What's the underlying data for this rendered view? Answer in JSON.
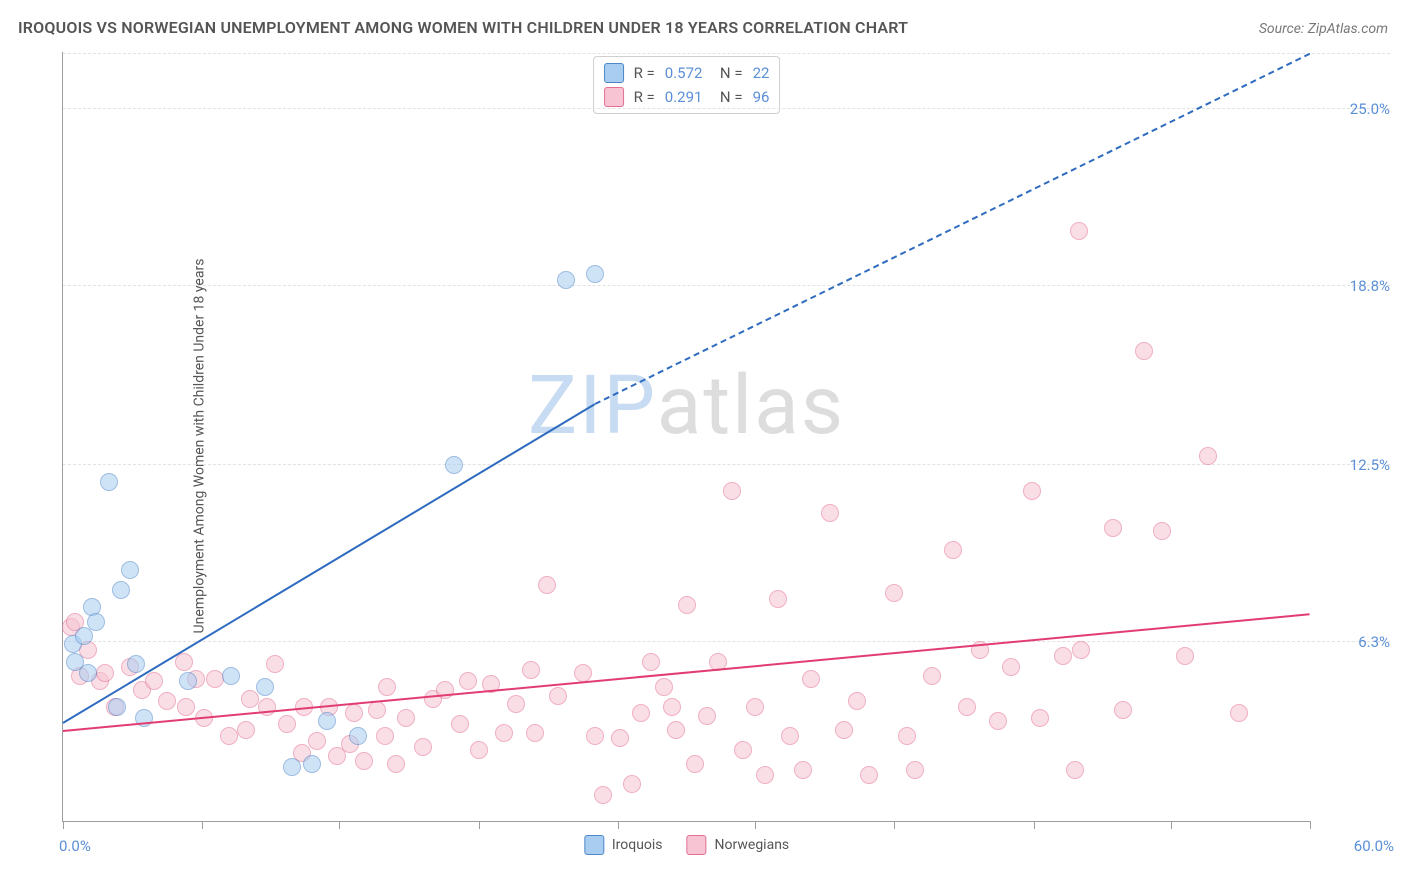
{
  "header": {
    "title": "IROQUOIS VS NORWEGIAN UNEMPLOYMENT AMONG WOMEN WITH CHILDREN UNDER 18 YEARS CORRELATION CHART",
    "source": "Source: ZipAtlas.com"
  },
  "chart": {
    "type": "scatter",
    "ylabel": "Unemployment Among Women with Children Under 18 years",
    "xlim": [
      0,
      60
    ],
    "ylim": [
      0,
      27
    ],
    "x_axis_labels": {
      "left": "0.0%",
      "right": "60.0%"
    },
    "xtick_positions": [
      0,
      6.7,
      13.3,
      20,
      26.7,
      33.3,
      40,
      46.7,
      53.3,
      60
    ],
    "y_ticks": [
      {
        "v": 6.3,
        "label": "6.3%"
      },
      {
        "v": 12.5,
        "label": "12.5%"
      },
      {
        "v": 18.8,
        "label": "18.8%"
      },
      {
        "v": 25.0,
        "label": "25.0%"
      }
    ],
    "background_color": "#ffffff",
    "grid_color": "#e2e2e2",
    "axis_color": "#9e9e9e",
    "tick_label_color": "#5b8fd6",
    "marker_radius": 9,
    "marker_opacity": 0.55,
    "series": {
      "iroquois": {
        "label": "Iroquois",
        "fill": "#a9cdf1",
        "stroke": "#4d87c7",
        "trend_color": "#2f6bbf",
        "R": "0.572",
        "N": "22",
        "trend": {
          "x1": 0,
          "y1": 3.4,
          "x2": 25.6,
          "y2": 14.6,
          "extend_to_x": 60,
          "extend_y": 26.9
        },
        "points": [
          [
            0.5,
            6.2
          ],
          [
            0.6,
            5.6
          ],
          [
            1.0,
            6.5
          ],
          [
            1.2,
            5.2
          ],
          [
            1.4,
            7.5
          ],
          [
            1.6,
            7.0
          ],
          [
            2.2,
            11.9
          ],
          [
            2.6,
            4.0
          ],
          [
            2.8,
            8.1
          ],
          [
            3.2,
            8.8
          ],
          [
            3.5,
            5.5
          ],
          [
            3.9,
            3.6
          ],
          [
            6.0,
            4.9
          ],
          [
            8.1,
            5.1
          ],
          [
            9.7,
            4.7
          ],
          [
            11.0,
            1.9
          ],
          [
            12.0,
            2.0
          ],
          [
            12.7,
            3.5
          ],
          [
            14.2,
            3.0
          ],
          [
            18.8,
            12.5
          ],
          [
            24.2,
            19.0
          ],
          [
            25.6,
            19.2
          ]
        ]
      },
      "norwegians": {
        "label": "Norwegians",
        "fill": "#f6c4d2",
        "stroke": "#e36f93",
        "trend_color": "#e23d72",
        "R": "0.291",
        "N": "96",
        "trend": {
          "x1": 0,
          "y1": 3.1,
          "x2": 60,
          "y2": 7.2
        },
        "points": [
          [
            0.4,
            6.8
          ],
          [
            0.6,
            7.0
          ],
          [
            0.8,
            5.1
          ],
          [
            1.2,
            6.0
          ],
          [
            1.8,
            4.9
          ],
          [
            2.0,
            5.2
          ],
          [
            2.5,
            4.0
          ],
          [
            3.2,
            5.4
          ],
          [
            3.8,
            4.6
          ],
          [
            4.4,
            4.9
          ],
          [
            5.0,
            4.2
          ],
          [
            5.8,
            5.6
          ],
          [
            5.9,
            4.0
          ],
          [
            6.4,
            5.0
          ],
          [
            6.8,
            3.6
          ],
          [
            7.3,
            5.0
          ],
          [
            8.0,
            3.0
          ],
          [
            8.8,
            3.2
          ],
          [
            9.0,
            4.3
          ],
          [
            9.8,
            4.0
          ],
          [
            10.2,
            5.5
          ],
          [
            10.8,
            3.4
          ],
          [
            11.5,
            2.4
          ],
          [
            11.6,
            4.0
          ],
          [
            12.2,
            2.8
          ],
          [
            12.8,
            4.0
          ],
          [
            13.2,
            2.3
          ],
          [
            13.8,
            2.7
          ],
          [
            14.0,
            3.8
          ],
          [
            14.5,
            2.1
          ],
          [
            15.1,
            3.9
          ],
          [
            15.5,
            3.0
          ],
          [
            15.6,
            4.7
          ],
          [
            16.0,
            2.0
          ],
          [
            16.5,
            3.6
          ],
          [
            17.3,
            2.6
          ],
          [
            17.8,
            4.3
          ],
          [
            18.4,
            4.6
          ],
          [
            19.1,
            3.4
          ],
          [
            19.5,
            4.9
          ],
          [
            20.0,
            2.5
          ],
          [
            20.6,
            4.8
          ],
          [
            21.2,
            3.1
          ],
          [
            21.8,
            4.1
          ],
          [
            22.5,
            5.3
          ],
          [
            22.7,
            3.1
          ],
          [
            23.3,
            8.3
          ],
          [
            23.8,
            4.4
          ],
          [
            25.0,
            5.2
          ],
          [
            25.6,
            3.0
          ],
          [
            26.0,
            0.9
          ],
          [
            26.8,
            2.9
          ],
          [
            27.4,
            1.3
          ],
          [
            27.8,
            3.8
          ],
          [
            28.3,
            5.6
          ],
          [
            28.9,
            4.7
          ],
          [
            29.5,
            3.2
          ],
          [
            30.0,
            7.6
          ],
          [
            30.4,
            2.0
          ],
          [
            31.0,
            3.7
          ],
          [
            31.5,
            5.6
          ],
          [
            32.2,
            11.6
          ],
          [
            32.7,
            2.5
          ],
          [
            33.3,
            4.0
          ],
          [
            33.8,
            1.6
          ],
          [
            34.4,
            7.8
          ],
          [
            35.0,
            3.0
          ],
          [
            35.6,
            1.8
          ],
          [
            36.0,
            5.0
          ],
          [
            36.9,
            10.8
          ],
          [
            37.6,
            3.2
          ],
          [
            38.2,
            4.2
          ],
          [
            38.8,
            1.6
          ],
          [
            40.0,
            8.0
          ],
          [
            40.6,
            3.0
          ],
          [
            41.0,
            1.8
          ],
          [
            41.8,
            5.1
          ],
          [
            42.8,
            9.5
          ],
          [
            43.5,
            4.0
          ],
          [
            44.1,
            6.0
          ],
          [
            45.0,
            3.5
          ],
          [
            45.6,
            5.4
          ],
          [
            46.6,
            11.6
          ],
          [
            47.0,
            3.6
          ],
          [
            48.1,
            5.8
          ],
          [
            48.7,
            1.8
          ],
          [
            48.9,
            20.7
          ],
          [
            49.0,
            6.0
          ],
          [
            50.5,
            10.3
          ],
          [
            51.0,
            3.9
          ],
          [
            52.0,
            16.5
          ],
          [
            52.9,
            10.2
          ],
          [
            54.0,
            5.8
          ],
          [
            55.1,
            12.8
          ],
          [
            56.6,
            3.8
          ],
          [
            29.3,
            4.0
          ]
        ]
      }
    },
    "watermark": {
      "part1": "ZIP",
      "part2": "atlas"
    }
  }
}
